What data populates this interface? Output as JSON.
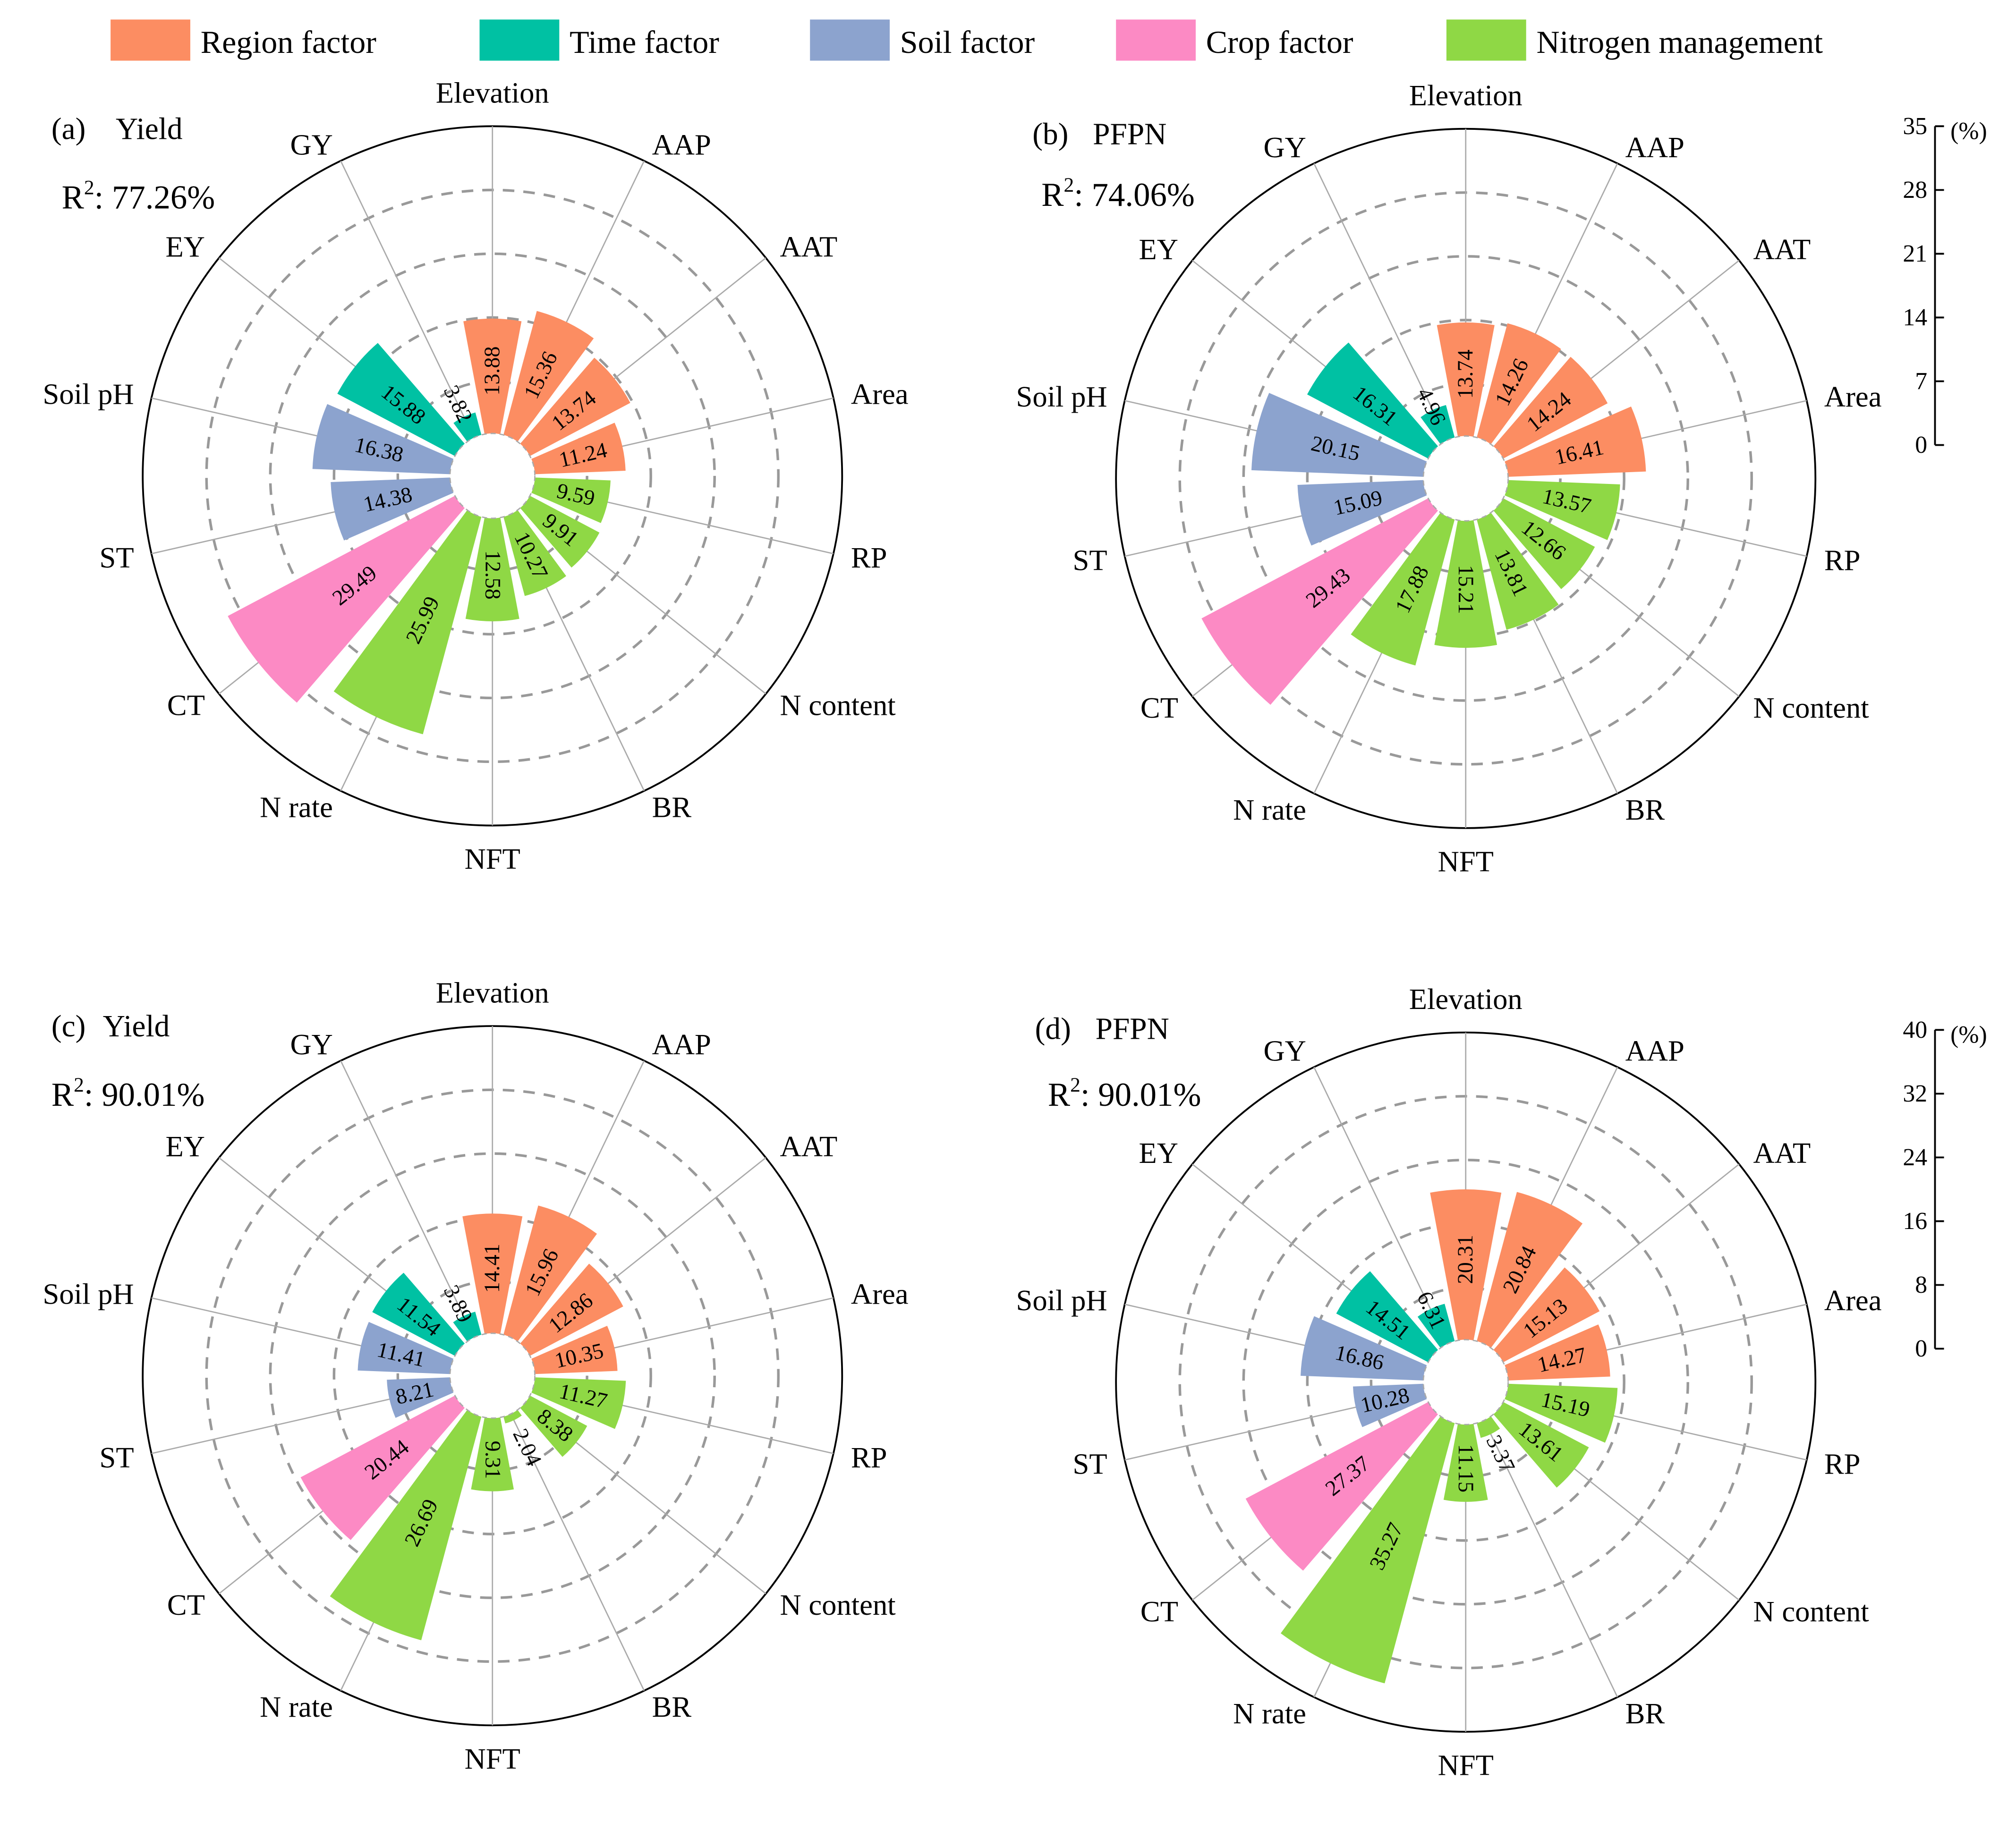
{
  "legend": [
    {
      "key": "region",
      "label": "Region factor",
      "color": "#FC8D62"
    },
    {
      "key": "time",
      "label": "Time factor",
      "color": "#00C1A3"
    },
    {
      "key": "soil",
      "label": "Soil factor",
      "color": "#8CA3CE"
    },
    {
      "key": "crop",
      "label": "Crop factor",
      "color": "#FC8AC4"
    },
    {
      "key": "nitrogen",
      "label": "Nitrogen management",
      "color": "#8FD845"
    }
  ],
  "chart_data": [
    {
      "type": "polar-bar",
      "panel": "(a)",
      "title": "Yield",
      "r2_label": "R",
      "r2_sup": "2",
      "r2_text": ": 77.26%",
      "categories": [
        "Elevation",
        "AAP",
        "AAT",
        "Area",
        "RP",
        "N content",
        "BR",
        "NFT",
        "N rate",
        "CT",
        "ST",
        "Soil pH",
        "EY",
        "GY"
      ],
      "groups": [
        "region",
        "region",
        "region",
        "region",
        "nitrogen",
        "nitrogen",
        "nitrogen",
        "nitrogen",
        "nitrogen",
        "crop",
        "soil",
        "soil",
        "time",
        "time"
      ],
      "values": [
        13.88,
        15.36,
        13.74,
        11.24,
        9.59,
        9.91,
        10.27,
        12.58,
        25.99,
        29.49,
        14.38,
        16.38,
        15.88,
        3.82
      ],
      "labels": [
        "13.88",
        "15.36",
        "13.74",
        "11.24",
        "9.59",
        "9.91",
        "10.27",
        "12.58",
        "25.99",
        "29.49",
        "14.38",
        "16.38",
        "15.88",
        "3.82"
      ],
      "rlim": [
        0,
        35
      ],
      "grid": [
        7,
        14,
        21,
        28
      ],
      "show_axis": false
    },
    {
      "type": "polar-bar",
      "panel": "(b)",
      "title": "PFPN",
      "r2_label": "R",
      "r2_sup": "2",
      "r2_text": ": 74.06%",
      "categories": [
        "Elevation",
        "AAP",
        "AAT",
        "Area",
        "RP",
        "N content",
        "BR",
        "NFT",
        "N rate",
        "CT",
        "ST",
        "Soil pH",
        "EY",
        "GY"
      ],
      "groups": [
        "region",
        "region",
        "region",
        "region",
        "nitrogen",
        "nitrogen",
        "nitrogen",
        "nitrogen",
        "nitrogen",
        "crop",
        "soil",
        "soil",
        "time",
        "time"
      ],
      "values": [
        13.74,
        14.26,
        14.24,
        16.41,
        13.57,
        12.66,
        13.81,
        15.21,
        17.88,
        29.43,
        15.09,
        20.15,
        16.31,
        4.96
      ],
      "labels": [
        "13.74",
        "14.26",
        "14.24",
        "16.41",
        "13.57",
        "12.66",
        "13.81",
        "15.21",
        "17.88",
        "29.43",
        "15.09",
        "20.15",
        "16.31",
        "4.96"
      ],
      "rlim": [
        0,
        35
      ],
      "grid": [
        7,
        14,
        21,
        28
      ],
      "show_axis": true,
      "axis_ticks": [
        "0",
        "7",
        "14",
        "21",
        "28",
        "35"
      ],
      "axis_unit": "(%)"
    },
    {
      "type": "polar-bar",
      "panel": "(c)",
      "title": "Yield",
      "r2_label": "R",
      "r2_sup": "2",
      "r2_text": ": 90.01%",
      "categories": [
        "Elevation",
        "AAP",
        "AAT",
        "Area",
        "RP",
        "N content",
        "BR",
        "NFT",
        "N rate",
        "CT",
        "ST",
        "Soil pH",
        "EY",
        "GY"
      ],
      "groups": [
        "region",
        "region",
        "region",
        "region",
        "nitrogen",
        "nitrogen",
        "nitrogen",
        "nitrogen",
        "nitrogen",
        "crop",
        "soil",
        "soil",
        "time",
        "time"
      ],
      "values": [
        14.41,
        15.96,
        12.86,
        10.35,
        11.27,
        8.38,
        2.04,
        9.31,
        26.69,
        20.44,
        8.21,
        11.41,
        11.54,
        3.89
      ],
      "labels": [
        "14.41",
        "15.96",
        "12.86",
        "10.35",
        "11.27",
        "8.38",
        "2.04",
        "9.31",
        "26.69",
        "20.44",
        "8.21",
        "11.41",
        "11.54",
        "3.89"
      ],
      "rlim": [
        0,
        35
      ],
      "grid": [
        7,
        14,
        21,
        28
      ],
      "show_axis": false
    },
    {
      "type": "polar-bar",
      "panel": "(d)",
      "title": "PFPN",
      "r2_label": "R",
      "r2_sup": "2",
      "r2_text": ": 90.01%",
      "categories": [
        "Elevation",
        "AAP",
        "AAT",
        "Area",
        "RP",
        "N content",
        "BR",
        "NFT",
        "N rate",
        "CT",
        "ST",
        "Soil pH",
        "EY",
        "GY"
      ],
      "groups": [
        "region",
        "region",
        "region",
        "region",
        "nitrogen",
        "nitrogen",
        "nitrogen",
        "nitrogen",
        "nitrogen",
        "crop",
        "soil",
        "soil",
        "time",
        "time"
      ],
      "values": [
        20.31,
        20.84,
        15.13,
        14.27,
        15.19,
        13.61,
        3.37,
        11.15,
        35.27,
        27.37,
        10.28,
        16.86,
        14.51,
        6.31
      ],
      "labels": [
        "20.31",
        "20.84",
        "15.13",
        "14.27",
        "15.19",
        "13.61",
        "3.37",
        "11.15",
        "35.27",
        "27.37",
        "10.28",
        "16.86",
        "14.51",
        "6.31"
      ],
      "rlim": [
        0,
        40
      ],
      "grid": [
        8,
        16,
        24,
        32
      ],
      "show_axis": true,
      "axis_ticks": [
        "0",
        "8",
        "16",
        "24",
        "32",
        "40"
      ],
      "axis_unit": "(%)"
    }
  ]
}
